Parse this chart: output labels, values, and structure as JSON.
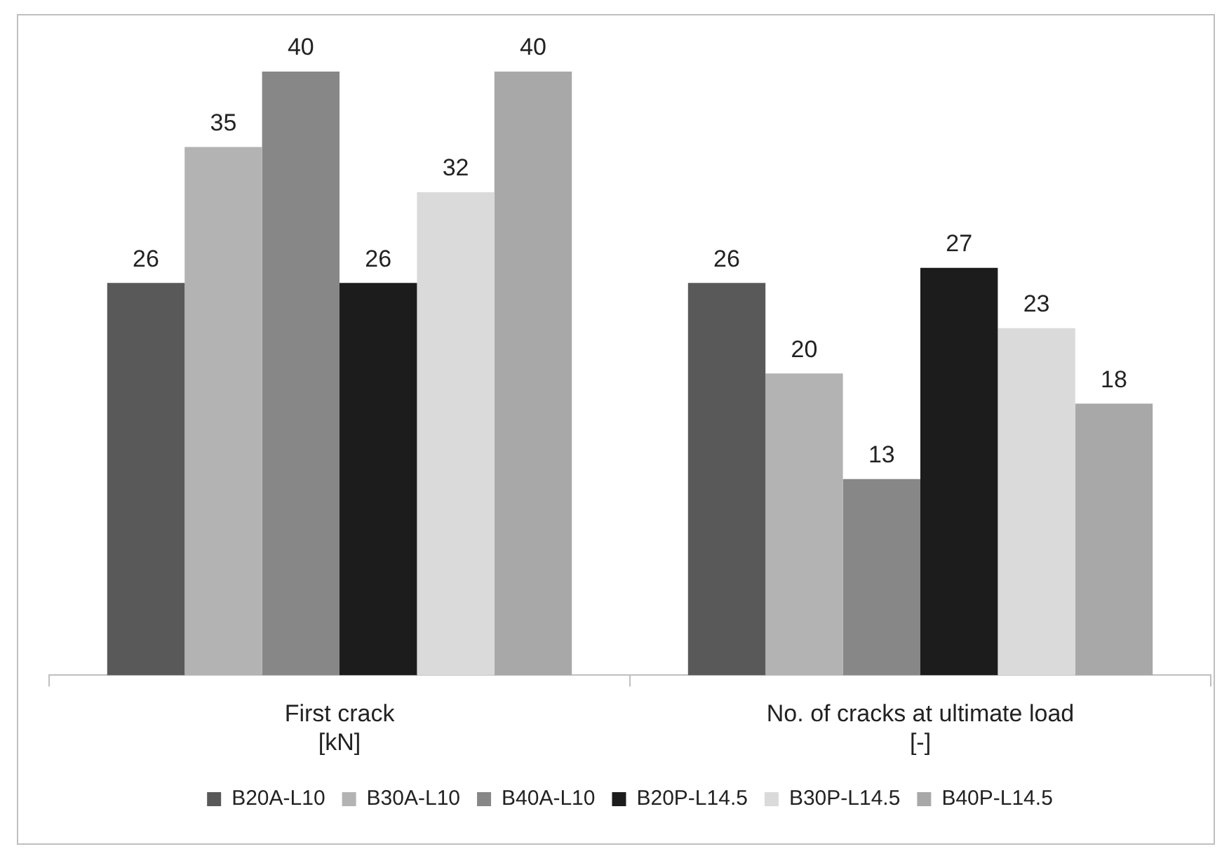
{
  "chart_data": {
    "type": "bar",
    "categories": [
      "First crack\n[kN]",
      "No. of cracks at ultimate load\n[-]"
    ],
    "series": [
      {
        "name": "B20A-L10",
        "color": "#595959",
        "values": [
          26,
          26
        ]
      },
      {
        "name": "B30A-L10",
        "color": "#b3b3b3",
        "values": [
          35,
          20
        ]
      },
      {
        "name": "B40A-L10",
        "color": "#878787",
        "values": [
          40,
          13
        ]
      },
      {
        "name": "B20P-L14.5",
        "color": "#1c1c1c",
        "values": [
          26,
          27
        ]
      },
      {
        "name": "B30P-L14.5",
        "color": "#dadada",
        "values": [
          32,
          23
        ]
      },
      {
        "name": "B40P-L14.5",
        "color": "#a8a8a8",
        "values": [
          40,
          18
        ]
      }
    ],
    "data_labels": true,
    "grid": false,
    "legend": "bottom",
    "tick_labels": "x"
  }
}
